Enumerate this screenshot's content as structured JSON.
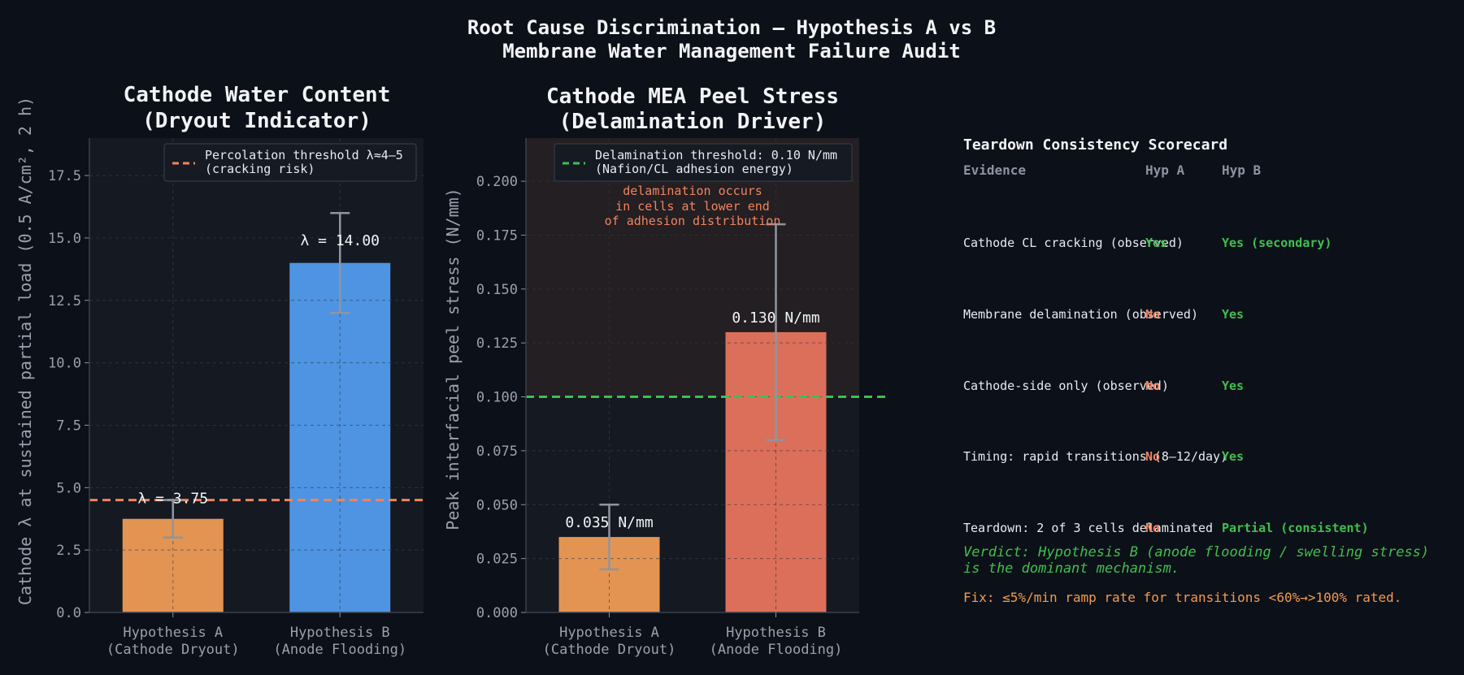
{
  "title": {
    "line1": "Root Cause Discrimination — Hypothesis A vs B",
    "line2": "Membrane Water Management Failure Audit"
  },
  "colors": {
    "background": "#0c1018",
    "panel": "#141922",
    "hyp_a": "#e39452",
    "hyp_b_water": "#4e94e2",
    "hyp_b_stress": "#dc6f5a",
    "percolation_line": "#f0845f",
    "delam_line": "#3ec04f",
    "yes": "#3ec04f",
    "no": "#f0845f",
    "fix": "#f29a50"
  },
  "chart_data": [
    {
      "type": "bar",
      "title_lines": [
        "Cathode Water Content",
        "(Dryout Indicator)"
      ],
      "ylabel": "Cathode λ at sustained partial load (0.5 A/cm², 2 h)",
      "categories": [
        [
          "Hypothesis A",
          "(Cathode Dryout)"
        ],
        [
          "Hypothesis B",
          "(Anode Flooding)"
        ]
      ],
      "values": [
        3.75,
        14.0
      ],
      "error_bars": [
        [
          3.0,
          4.5
        ],
        [
          12.0,
          16.0
        ]
      ],
      "bar_colors": [
        "#e39452",
        "#4e94e2"
      ],
      "data_labels": [
        "λ = 3.75",
        "λ = 14.00"
      ],
      "ylim": [
        0,
        19
      ],
      "yticks": [
        0,
        2.5,
        5,
        7.5,
        10,
        12.5,
        15,
        17.5
      ],
      "ytick_labels": [
        "0.0",
        "2.5",
        "5.0",
        "7.5",
        "10.0",
        "12.5",
        "15.0",
        "17.5"
      ],
      "threshold": {
        "value": 4.5,
        "color": "#f0845f",
        "legend_lines": [
          "Percolation threshold λ≈4–5",
          "(cracking risk)"
        ]
      },
      "grid": true,
      "legend": "top-right"
    },
    {
      "type": "bar",
      "title_lines": [
        "Cathode MEA Peel Stress",
        "(Delamination Driver)"
      ],
      "ylabel": "Peak interfacial peel stress (N/mm)",
      "categories": [
        [
          "Hypothesis A",
          "(Cathode Dryout)"
        ],
        [
          "Hypothesis B",
          "(Anode Flooding)"
        ]
      ],
      "values": [
        0.035,
        0.13
      ],
      "error_bars": [
        [
          0.02,
          0.05
        ],
        [
          0.08,
          0.18
        ]
      ],
      "bar_colors": [
        "#e39452",
        "#dc6f5a"
      ],
      "data_labels": [
        "0.035 N/mm",
        "0.130 N/mm"
      ],
      "ylim": [
        0,
        0.22
      ],
      "yticks": [
        0,
        0.025,
        0.05,
        0.075,
        0.1,
        0.125,
        0.15,
        0.175,
        0.2
      ],
      "ytick_labels": [
        "0.000",
        "0.025",
        "0.050",
        "0.075",
        "0.100",
        "0.125",
        "0.150",
        "0.175",
        "0.200"
      ],
      "threshold": {
        "value": 0.1,
        "color": "#3ec04f",
        "legend_lines": [
          "Delamination threshold: 0.10 N/mm",
          "(Nafion/CL adhesion energy)"
        ]
      },
      "shaded_above_threshold": true,
      "annotation_lines": [
        "delamination occurs",
        "in cells at lower end",
        "of adhesion distribution"
      ],
      "annotation_color": "#f0845f",
      "grid": true,
      "legend": "top-right"
    }
  ],
  "scorecard": {
    "title": "Teardown Consistency Scorecard",
    "headers": {
      "evidence": "Evidence",
      "hyp_a": "Hyp A",
      "hyp_b": "Hyp B"
    },
    "rows": [
      {
        "evidence": "Cathode CL cracking (observed)",
        "a": "Yes",
        "a_status": "yes",
        "b": "Yes (secondary)",
        "b_status": "yes"
      },
      {
        "evidence": "Membrane delamination (observed)",
        "a": "No",
        "a_status": "no",
        "b": "Yes",
        "b_status": "yes"
      },
      {
        "evidence": "Cathode-side only (observed)",
        "a": "No",
        "a_status": "no",
        "b": "Yes",
        "b_status": "yes"
      },
      {
        "evidence": "Timing: rapid transitions (8–12/day)",
        "a": "No",
        "a_status": "no",
        "b": "Yes",
        "b_status": "yes"
      },
      {
        "evidence": "Teardown: 2 of 3 cells delaminated",
        "a": "No",
        "a_status": "no",
        "b": "Partial (consistent)",
        "b_status": "yes"
      }
    ],
    "verdict_lines": [
      "Verdict: Hypothesis B (anode flooding / swelling stress)",
      "is the dominant mechanism."
    ],
    "fix": "Fix: ≤5%/min ramp rate for transitions <60%→>100% rated."
  }
}
